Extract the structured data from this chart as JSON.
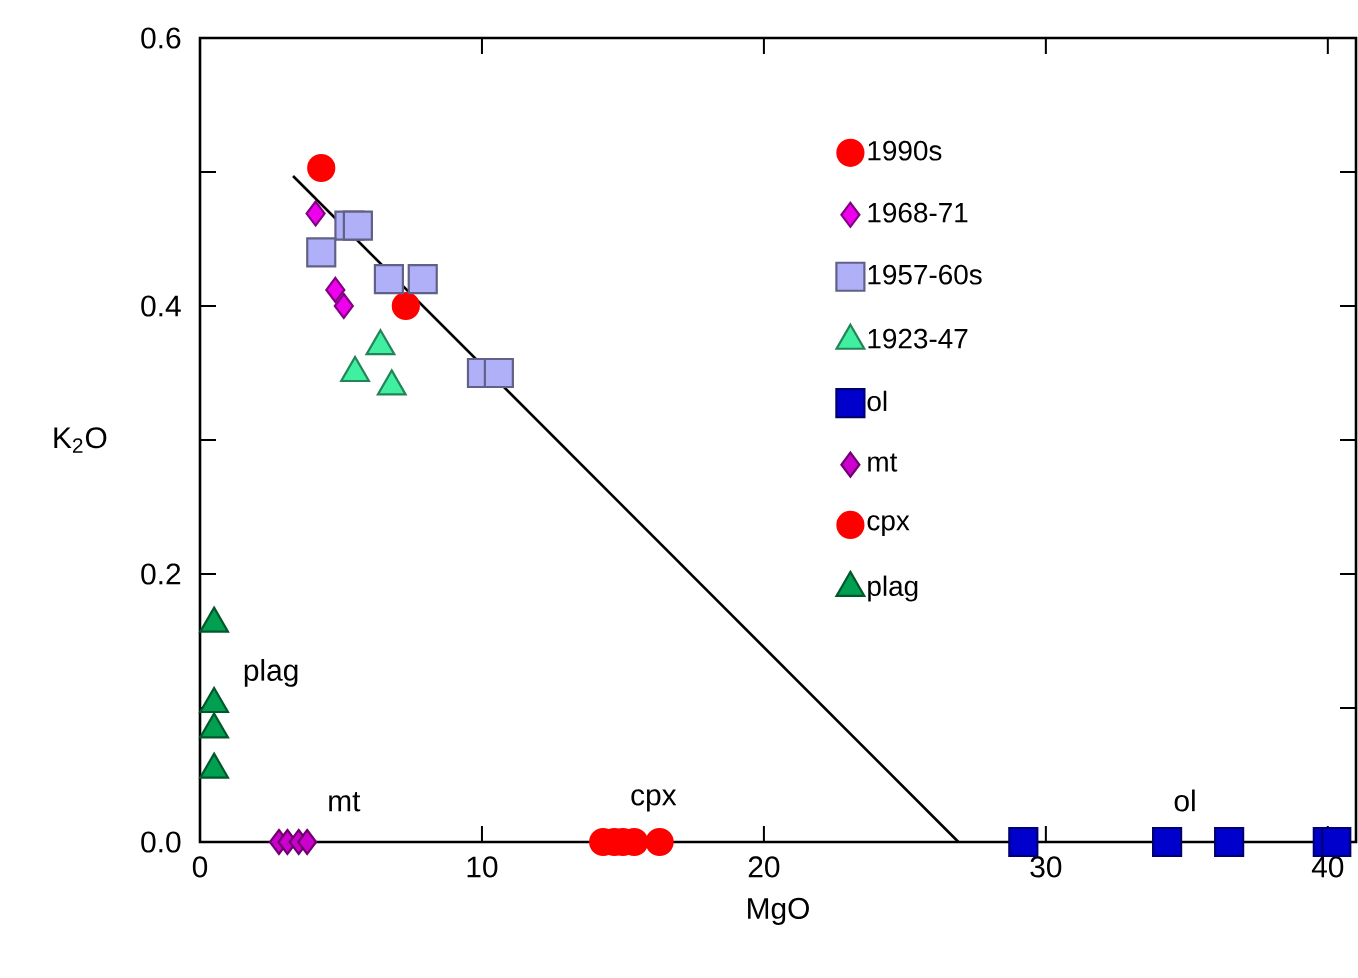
{
  "chart_data": {
    "type": "scatter",
    "xlabel": "MgO",
    "ylabel": "K$_{2}$O",
    "xlim": [
      0,
      41
    ],
    "ylim": [
      0,
      0.6
    ],
    "xticks": [
      0,
      10,
      20,
      30,
      40
    ],
    "yticks": [
      {
        "value": 0,
        "label": "0.0"
      },
      {
        "value": 0.1,
        "label": null
      },
      0.2,
      {
        "value": 0.3,
        "label": null
      },
      0.4,
      {
        "value": 0.5,
        "label": null
      },
      0.6
    ],
    "grid": false,
    "legend": "top",
    "series": [
      {
        "name": "1990s",
        "color": "#ff0000",
        "marker": "circle",
        "x": [
          4.3,
          7.3
        ],
        "values": [
          0.503,
          0.4
        ]
      },
      {
        "name": "1968-71",
        "color": "#ee00ee",
        "marker": "diamond",
        "x": [
          4.1,
          4.8,
          5.1
        ],
        "values": [
          0.469,
          0.412,
          0.4
        ]
      },
      {
        "name": "1957-60s",
        "color": "#b0b0f8",
        "marker": "square",
        "x": [
          5.3,
          5.6,
          4.3,
          6.7,
          7.9,
          10.0,
          10.6
        ],
        "values": [
          0.46,
          0.46,
          0.44,
          0.42,
          0.42,
          0.35,
          0.35
        ]
      },
      {
        "name": "1923-47",
        "color": "#40f0a0",
        "marker": "triangle",
        "x": [
          6.4,
          5.5,
          6.8
        ],
        "values": [
          0.37,
          0.35,
          0.34
        ]
      },
      {
        "name": "ol",
        "color": "#0000cc",
        "marker": "square",
        "x": [
          29.2,
          34.3,
          36.5,
          40.0,
          40.3
        ],
        "values": [
          0,
          0,
          0,
          0,
          0
        ]
      },
      {
        "name": "mt",
        "color": "#cc00cc",
        "marker": "diamond",
        "x": [
          2.8,
          3.1,
          3.5,
          3.8
        ],
        "values": [
          0,
          0,
          0,
          0
        ]
      },
      {
        "name": "cpx",
        "color": "#ff0000",
        "marker": "circle",
        "x": [
          14.3,
          14.7,
          15.0,
          15.4,
          16.3
        ],
        "values": [
          0,
          0,
          0,
          0,
          0
        ]
      },
      {
        "name": "plag",
        "color": "#00a050",
        "marker": "triangle",
        "x": [
          0.5,
          0.5,
          0.5,
          0.5
        ],
        "values": [
          0.163,
          0.103,
          0.084,
          0.054
        ]
      },
      {
        "type": "line",
        "color": "#000000",
        "marker": "none",
        "x": [
          3.3,
          26.9
        ],
        "values": [
          0.497,
          0
        ]
      }
    ],
    "annotations": [
      "plag",
      "mt",
      "cpx",
      "ol"
    ]
  }
}
